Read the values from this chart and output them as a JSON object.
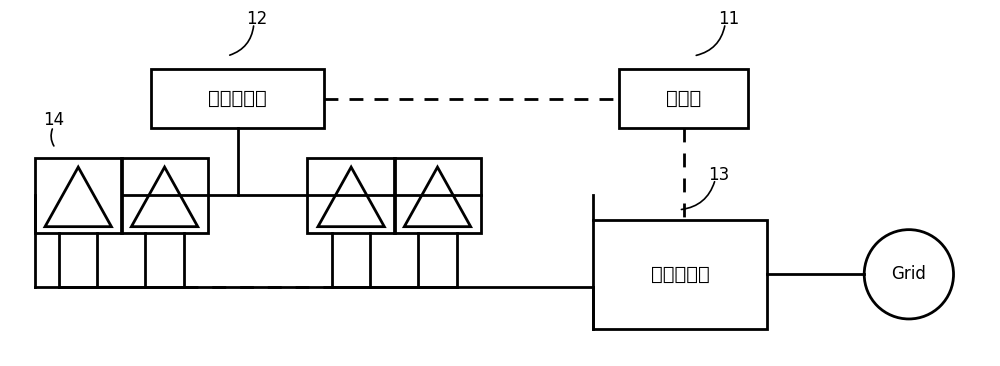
{
  "bg_color": "#ffffff",
  "line_color": "#000000",
  "lw": 2.0,
  "label_11": "11",
  "label_12": "12",
  "label_13": "13",
  "label_14": "14",
  "box_tracker_label": "光伏跟踪器",
  "box_controller_label": "控制器",
  "box_inverter_label": "光伏逆变器",
  "grid_label": "Grid",
  "figsize": [
    10.0,
    3.66
  ],
  "dpi": 100
}
